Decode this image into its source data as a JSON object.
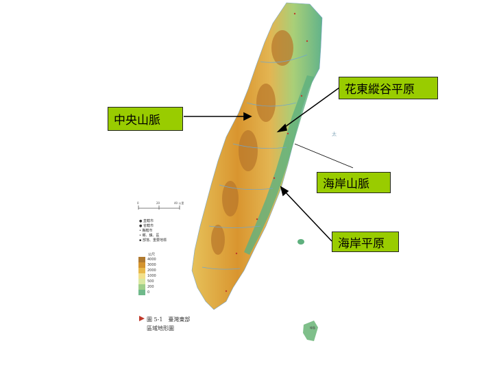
{
  "callouts": {
    "rift_valley": "花東縱谷平原",
    "central_range": "中央山脈",
    "coastal_range": "海岸山脈",
    "coastal_plain": "海岸平原"
  },
  "scale_bar": {
    "ticks": [
      "0",
      "20",
      "40 公里"
    ]
  },
  "legend": {
    "items": [
      "直轄市",
      "省轄市",
      "縣轄市",
      "鄉、鎮、區",
      "部落、重要地標"
    ]
  },
  "elevation_legend": {
    "unit": "公尺",
    "levels": [
      "4000",
      "3000",
      "2000",
      "1000",
      "500",
      "200",
      "0"
    ],
    "colors": [
      "#b07a30",
      "#d4942e",
      "#e8b94a",
      "#f2e08a",
      "#d9e8a0",
      "#9fcf8a",
      "#6fb98a"
    ]
  },
  "figure_caption": {
    "line1": "圖 5-1　臺灣東部",
    "line2": "區域地形圖"
  },
  "map_labels": {
    "sea": "太",
    "island_label": "綠島"
  }
}
